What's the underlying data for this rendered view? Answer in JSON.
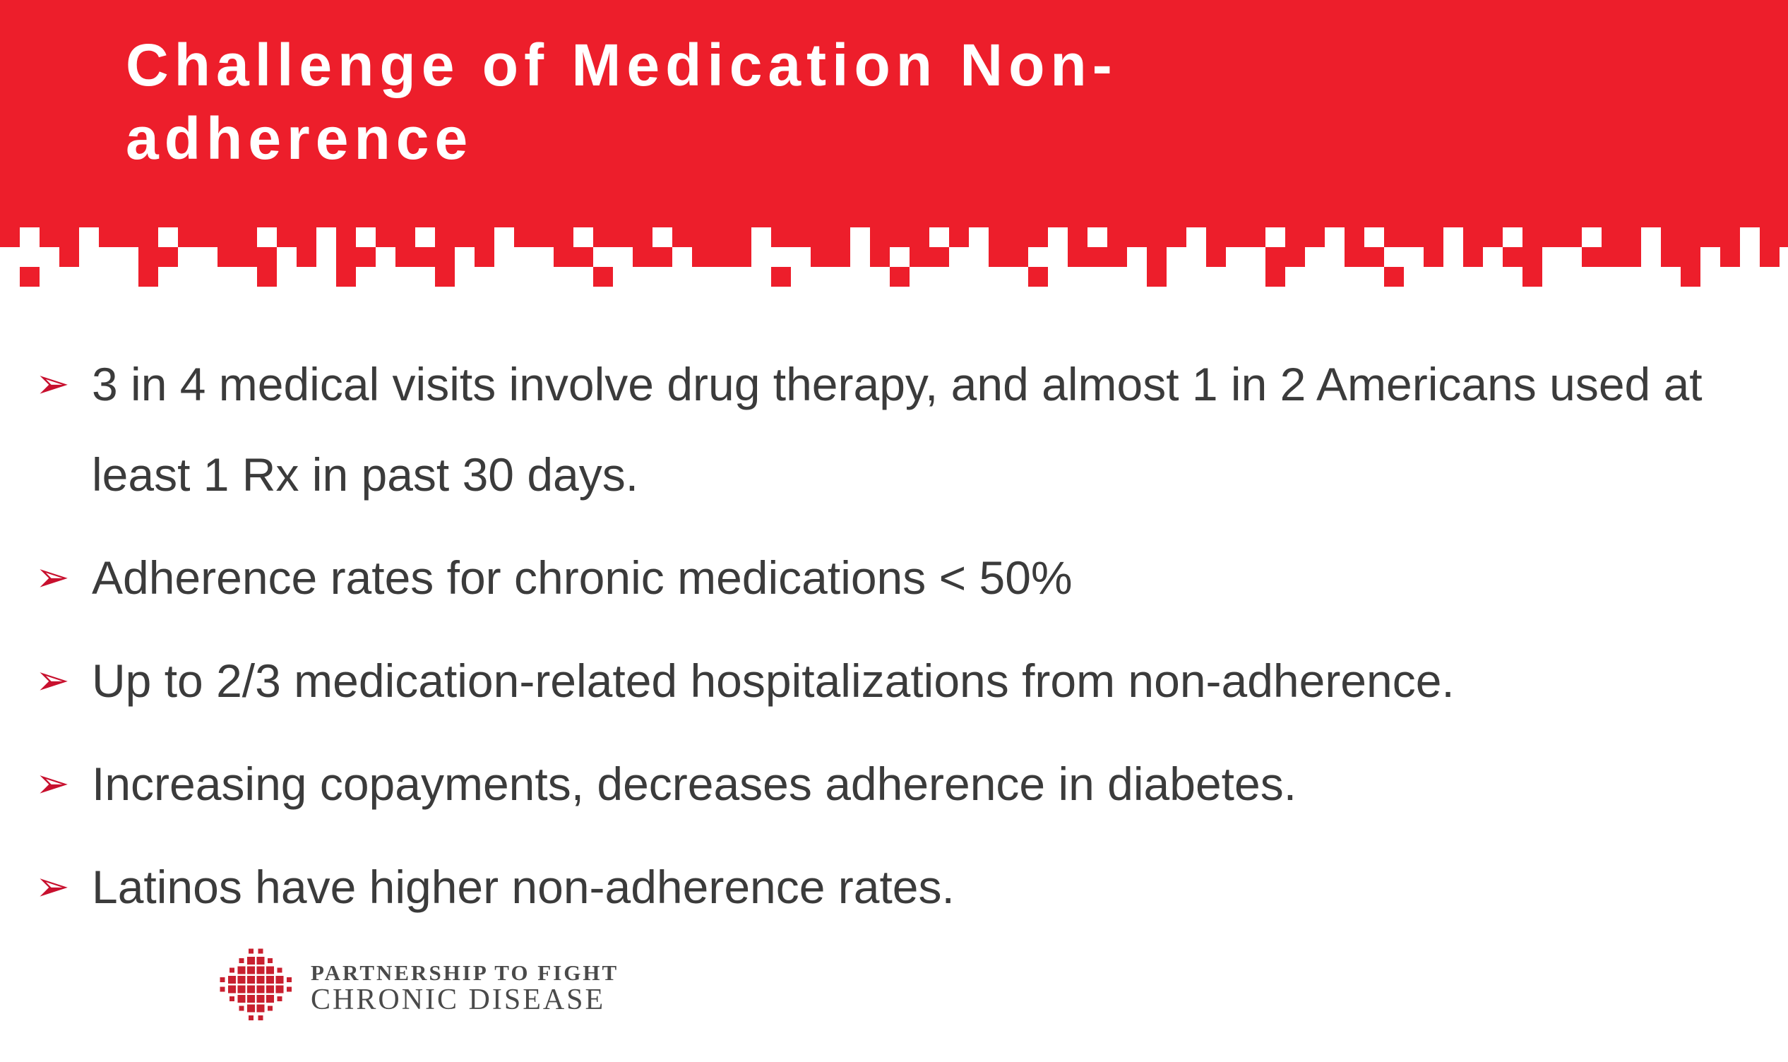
{
  "title": "Challenge of Medication Non-adherence",
  "brand_color": "#ED1E2B",
  "bullet_icon": "arrowhead-icon",
  "bullets": [
    "3 in 4 medical visits involve drug therapy, and almost 1 in 2 Americans used at least 1 Rx in past 30 days.",
    "Adherence rates for chronic medications < 50%",
    "Up to 2/3 medication-related hospitalizations from non-adherence.",
    "Increasing copayments, decreases adherence in diabetes.",
    "Latinos have higher non-adherence rates."
  ],
  "logo": {
    "line1": "PARTNERSHIP TO FIGHT",
    "line2": "CHRONIC DISEASE"
  }
}
